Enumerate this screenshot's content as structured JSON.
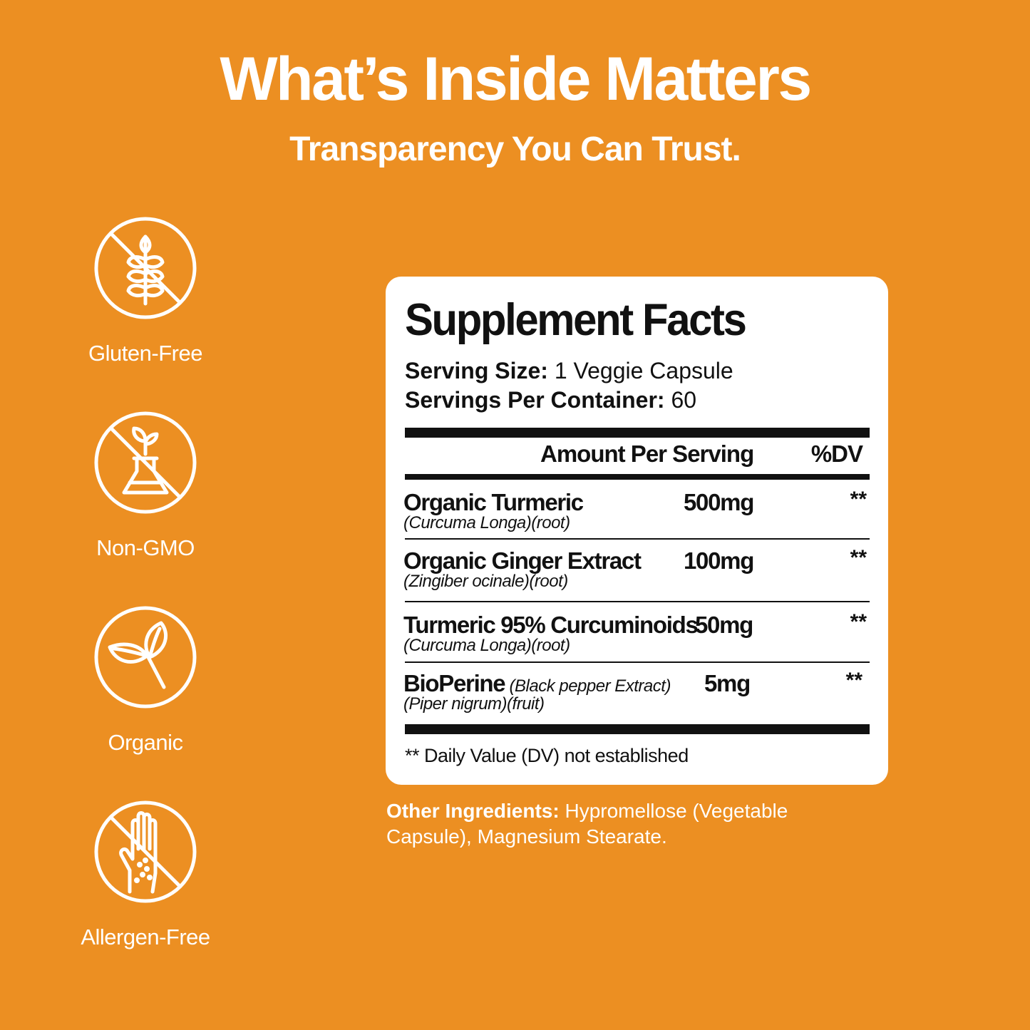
{
  "header": {
    "title": "What’s Inside Matters",
    "subtitle": "Transparency You Can Trust."
  },
  "badges": [
    {
      "label": "Gluten-Free",
      "icon": "no-wheat-icon"
    },
    {
      "label": "Non-GMO",
      "icon": "no-gmo-flask-icon"
    },
    {
      "label": "Organic",
      "icon": "leaf-icon"
    },
    {
      "label": "Allergen-Free",
      "icon": "no-allergen-hand-icon"
    }
  ],
  "facts": {
    "title": "Supplement Facts",
    "serving_size_label": "Serving Size:",
    "serving_size_value": " 1 Veggie Capsule",
    "servings_per_container_label": "Servings Per Container:",
    "servings_per_container_value": " 60",
    "amount_header": "Amount Per Serving",
    "dv_header": "%DV",
    "ingredients": [
      {
        "name": "Organic Turmeric",
        "name_note": "",
        "sub": "(Curcuma Longa)(root)",
        "amount": "500mg",
        "dv": "**"
      },
      {
        "name": "Organic Ginger Extract",
        "name_note": "",
        "sub": "(Zingiber ocinale)(root)",
        "amount": "100mg",
        "dv": "**"
      },
      {
        "name": "Turmeric 95% Curcuminoids",
        "name_note": "",
        "sub": "(Curcuma Longa)(root)",
        "amount": "50mg",
        "dv": "**"
      },
      {
        "name": "BioPerine",
        "name_note": " (Black pepper Extract)",
        "sub": "(Piper nigrum)(fruit)",
        "amount": "5mg",
        "dv": "**"
      }
    ],
    "footnote": "** Daily Value (DV) not established"
  },
  "other_ingredients": {
    "label": "Other Ingredients:",
    "text": " Hypromellose (Vegetable Capsule), Magnesium Stearate."
  },
  "colors": {
    "background": "#ec8f22",
    "card": "#ffffff",
    "text_dark": "#111111"
  }
}
